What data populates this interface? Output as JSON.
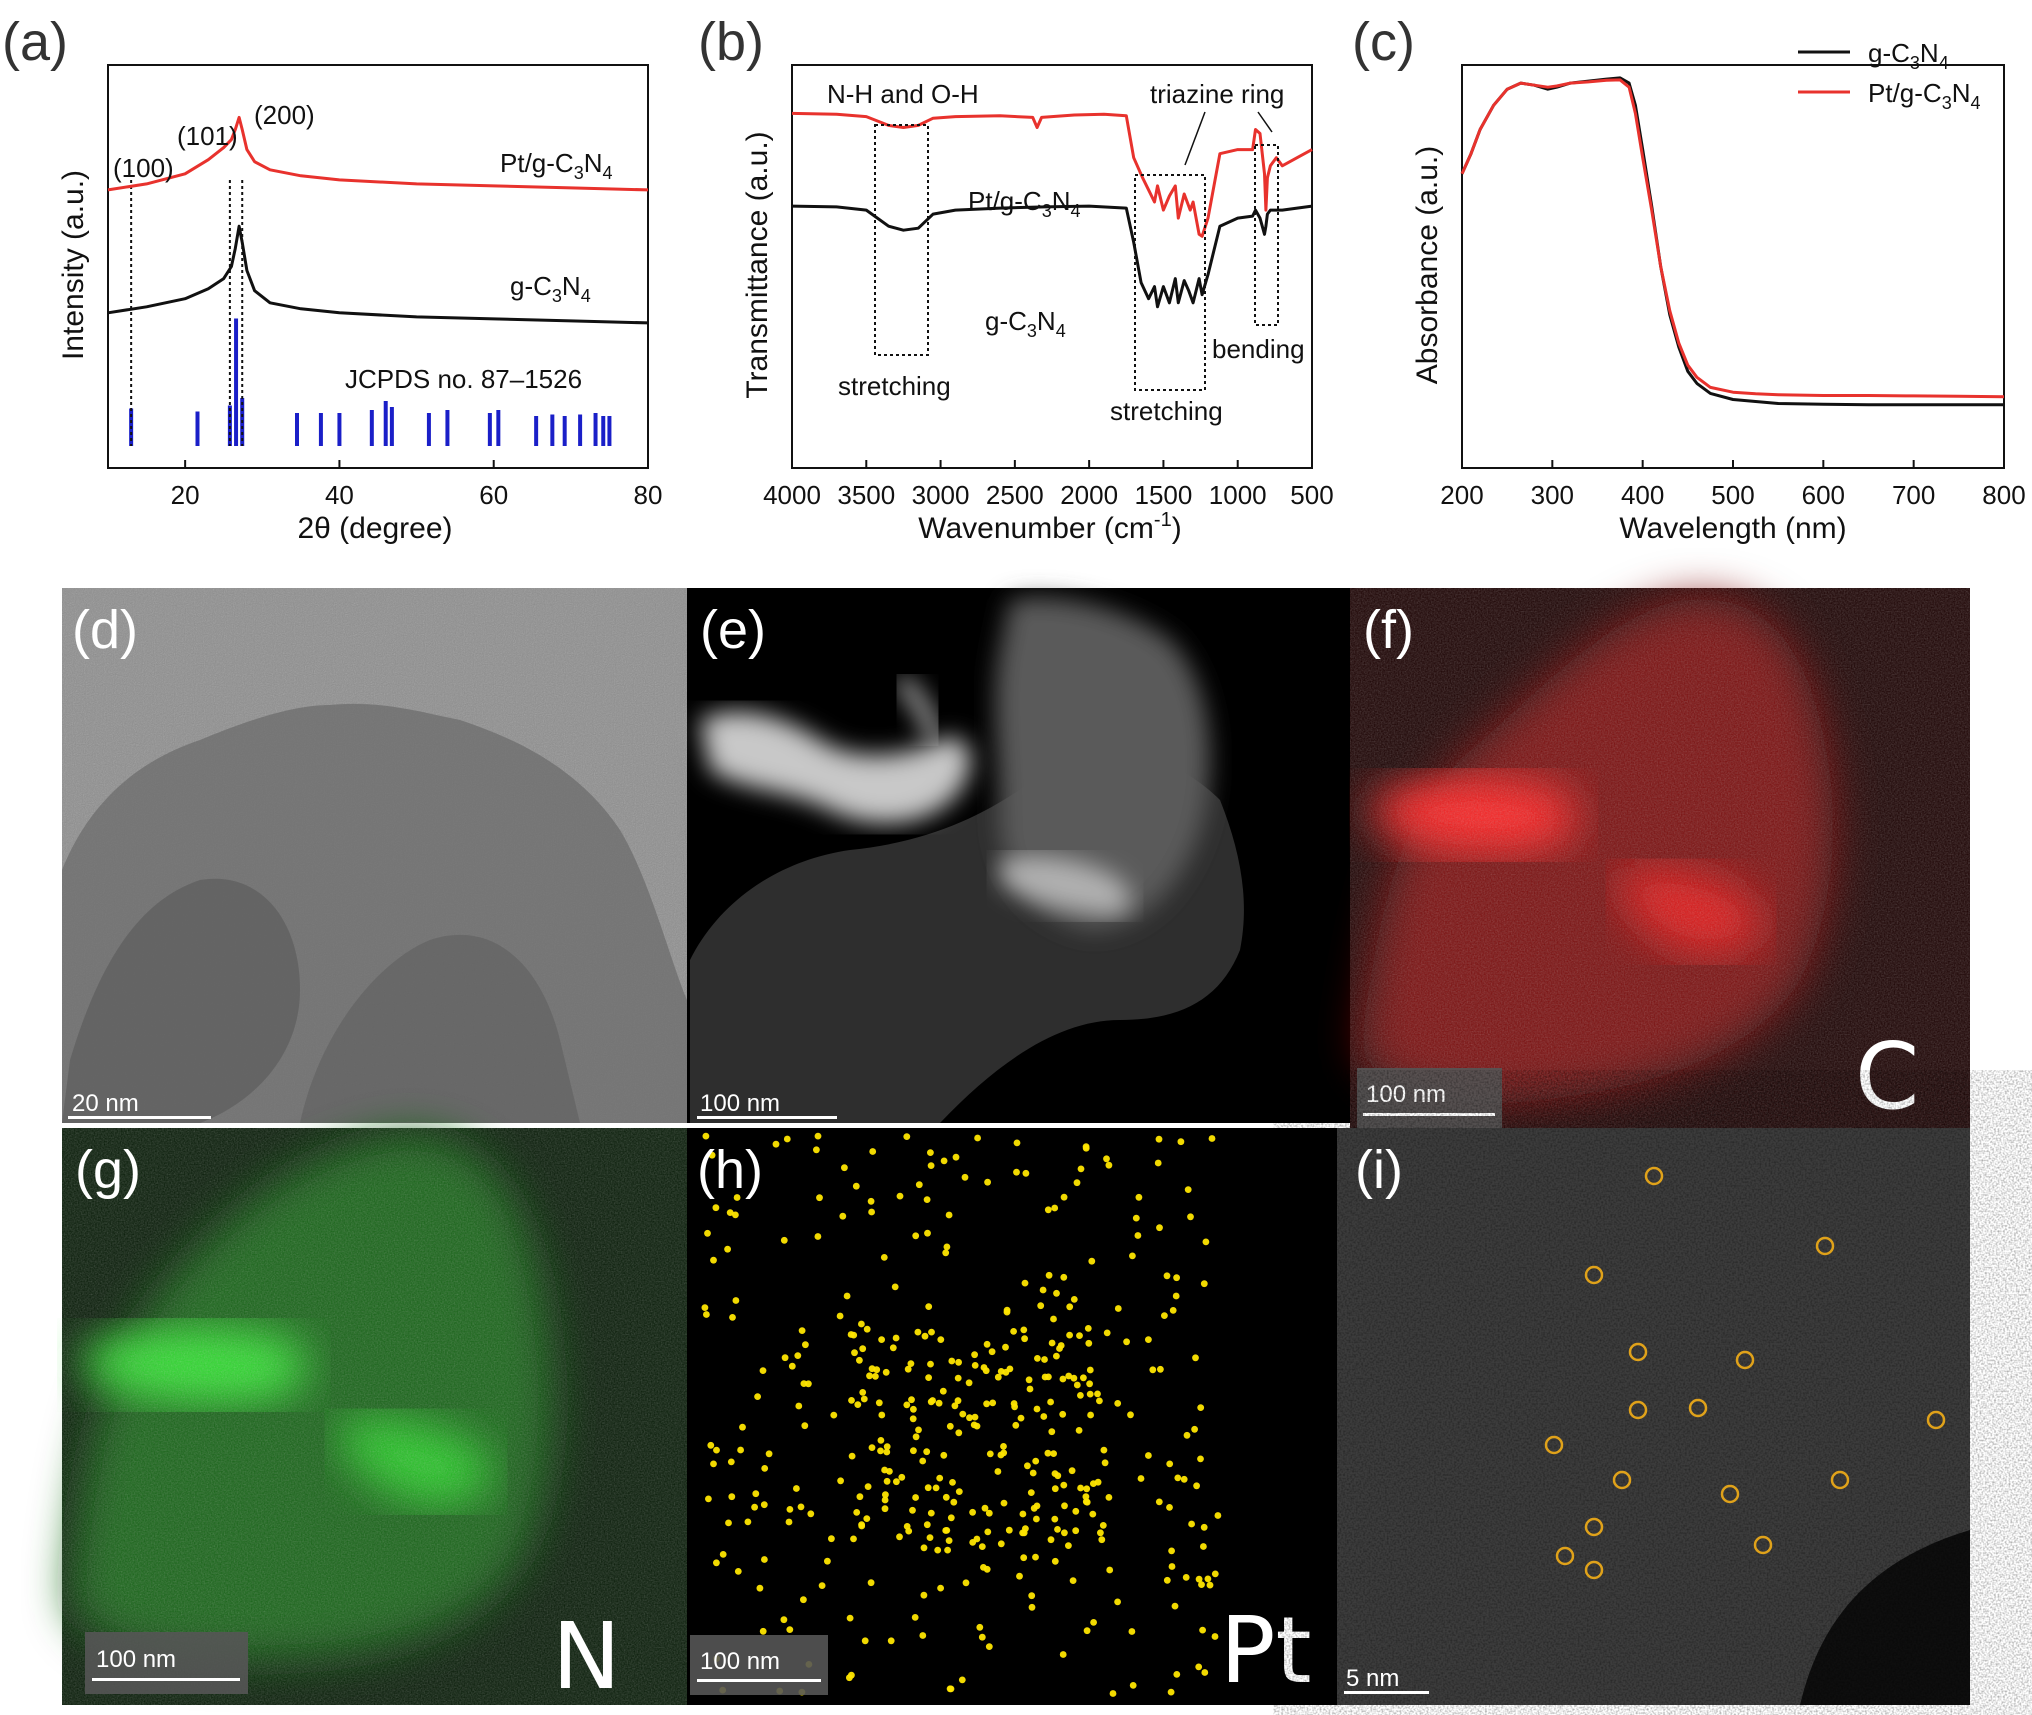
{
  "panel_labels": {
    "a": "(a)",
    "b": "(b)",
    "c": "(c)",
    "d": "(d)",
    "e": "(e)",
    "f": "(f)",
    "g": "(g)",
    "h": "(h)",
    "i": "(i)"
  },
  "chart_data": [
    {
      "type": "line",
      "panel": "a",
      "xlabel": "2θ (degree)",
      "ylabel": "Intensity (a.u.)",
      "xlim": [
        10,
        80
      ],
      "xticks": [
        20,
        40,
        60,
        80
      ],
      "series": [
        {
          "name": "Pt/g-C3N4",
          "color": "#e8322d",
          "x": [
            10,
            15,
            20,
            23,
            25,
            26,
            26.5,
            27,
            27.4,
            28,
            29,
            31,
            35,
            40,
            50,
            60,
            70,
            80
          ],
          "y": [
            0.69,
            0.705,
            0.73,
            0.765,
            0.795,
            0.815,
            0.84,
            0.87,
            0.84,
            0.79,
            0.76,
            0.74,
            0.725,
            0.715,
            0.705,
            0.7,
            0.695,
            0.69
          ]
        },
        {
          "name": "g-C3N4",
          "color": "#111111",
          "x": [
            10,
            15,
            20,
            23,
            25,
            26,
            26.5,
            27,
            27.4,
            28,
            29,
            31,
            35,
            40,
            50,
            60,
            70,
            80
          ],
          "y": [
            0.385,
            0.4,
            0.42,
            0.445,
            0.47,
            0.5,
            0.545,
            0.6,
            0.56,
            0.49,
            0.44,
            0.41,
            0.395,
            0.385,
            0.375,
            0.37,
            0.365,
            0.36
          ]
        }
      ],
      "reference": {
        "label": "JCPDS no. 87–1526",
        "color": "#1a1fc8",
        "positions": [
          13.0,
          21.6,
          25.8,
          26.6,
          27.4,
          34.5,
          37.6,
          40.0,
          44.2,
          46.0,
          46.8,
          51.6,
          54.0,
          59.5,
          60.6,
          65.5,
          67.6,
          69.2,
          71.2,
          73.2,
          74.2,
          75.0
        ],
        "heights": [
          0.25,
          0.23,
          0.27,
          0.85,
          0.32,
          0.22,
          0.22,
          0.22,
          0.24,
          0.3,
          0.26,
          0.22,
          0.24,
          0.22,
          0.24,
          0.2,
          0.21,
          0.2,
          0.21,
          0.22,
          0.2,
          0.2
        ]
      },
      "peak_labels": [
        {
          "text": "(100)",
          "x": 13.0
        },
        {
          "text": "(101)",
          "x": 25.8
        },
        {
          "text": "(200)",
          "x": 27.4
        }
      ],
      "annotations": [
        "Pt/g-C3N4",
        "g-C3N4",
        "JCPDS no. 87–1526"
      ]
    },
    {
      "type": "line",
      "panel": "b",
      "xlabel": "Wavenumber (cm-1)",
      "ylabel": "Transmittance (a.u.)",
      "xlim": [
        4000,
        500
      ],
      "xticks": [
        4000,
        3500,
        3000,
        2500,
        2000,
        1500,
        1000,
        500
      ],
      "series": [
        {
          "name": "Pt/g-C3N4",
          "color": "#e8322d",
          "x": [
            4000,
            3700,
            3500,
            3350,
            3250,
            3150,
            3050,
            2900,
            2600,
            2380,
            2350,
            2320,
            2100,
            1900,
            1750,
            1700,
            1640,
            1600,
            1560,
            1540,
            1500,
            1460,
            1420,
            1400,
            1360,
            1320,
            1300,
            1260,
            1240,
            1200,
            1120,
            1000,
            900,
            880,
            850,
            820,
            810,
            800,
            780,
            740,
            700,
            600,
            500
          ],
          "y": [
            0.88,
            0.878,
            0.872,
            0.85,
            0.845,
            0.85,
            0.868,
            0.872,
            0.874,
            0.87,
            0.845,
            0.87,
            0.876,
            0.878,
            0.874,
            0.77,
            0.72,
            0.69,
            0.66,
            0.7,
            0.64,
            0.675,
            0.7,
            0.62,
            0.68,
            0.64,
            0.66,
            0.58,
            0.575,
            0.62,
            0.78,
            0.79,
            0.79,
            0.84,
            0.83,
            0.73,
            0.64,
            0.72,
            0.75,
            0.77,
            0.75,
            0.77,
            0.79
          ]
        },
        {
          "name": "g-C3N4",
          "color": "#111111",
          "x": [
            4000,
            3700,
            3500,
            3350,
            3250,
            3150,
            3050,
            2900,
            2600,
            2300,
            2000,
            1750,
            1700,
            1650,
            1600,
            1560,
            1540,
            1500,
            1460,
            1420,
            1400,
            1360,
            1330,
            1300,
            1260,
            1240,
            1200,
            1120,
            1000,
            900,
            880,
            850,
            820,
            810,
            800,
            780,
            740,
            700,
            600,
            500
          ],
          "y": [
            0.65,
            0.648,
            0.64,
            0.6,
            0.59,
            0.595,
            0.63,
            0.64,
            0.645,
            0.648,
            0.65,
            0.645,
            0.56,
            0.46,
            0.42,
            0.45,
            0.4,
            0.45,
            0.41,
            0.47,
            0.41,
            0.465,
            0.44,
            0.41,
            0.47,
            0.43,
            0.48,
            0.6,
            0.62,
            0.625,
            0.64,
            0.62,
            0.58,
            0.6,
            0.63,
            0.64,
            0.64,
            0.64,
            0.645,
            0.65
          ]
        }
      ],
      "annotations": [
        "N-H and O-H",
        "triazine ring",
        "Pt/g-C3N4",
        "g-C3N4",
        "stretching",
        "stretching",
        "bending"
      ]
    },
    {
      "type": "line",
      "panel": "c",
      "xlabel": "Wavelength (nm)",
      "ylabel": "Absorbance (a.u.)",
      "xlim": [
        200,
        800
      ],
      "xticks": [
        200,
        300,
        400,
        500,
        600,
        700,
        800
      ],
      "legend": "top-right",
      "series": [
        {
          "name": "g-C3N4",
          "color": "#111111",
          "x": [
            200,
            210,
            220,
            235,
            250,
            265,
            280,
            295,
            305,
            320,
            340,
            360,
            375,
            385,
            392,
            400,
            410,
            420,
            430,
            440,
            450,
            460,
            475,
            500,
            525,
            550,
            600,
            650,
            700,
            750,
            800
          ],
          "y": [
            0.73,
            0.78,
            0.84,
            0.9,
            0.94,
            0.955,
            0.95,
            0.94,
            0.945,
            0.955,
            0.96,
            0.965,
            0.968,
            0.955,
            0.9,
            0.79,
            0.65,
            0.5,
            0.38,
            0.3,
            0.24,
            0.21,
            0.185,
            0.17,
            0.165,
            0.16,
            0.158,
            0.157,
            0.157,
            0.157,
            0.157
          ]
        },
        {
          "name": "Pt/g-C3N4",
          "color": "#e8322d",
          "x": [
            200,
            210,
            220,
            235,
            250,
            265,
            280,
            295,
            305,
            320,
            340,
            360,
            375,
            385,
            392,
            400,
            410,
            420,
            430,
            440,
            450,
            460,
            475,
            500,
            525,
            550,
            600,
            650,
            700,
            750,
            800
          ],
          "y": [
            0.73,
            0.78,
            0.84,
            0.9,
            0.94,
            0.955,
            0.95,
            0.945,
            0.948,
            0.955,
            0.958,
            0.962,
            0.963,
            0.945,
            0.88,
            0.77,
            0.64,
            0.5,
            0.39,
            0.31,
            0.255,
            0.225,
            0.2,
            0.188,
            0.184,
            0.182,
            0.18,
            0.18,
            0.179,
            0.178,
            0.177
          ]
        }
      ]
    }
  ],
  "images": {
    "d": {
      "scalebar": "20 nm"
    },
    "e": {
      "scalebar": "100 nm"
    },
    "f": {
      "scalebar": "100 nm",
      "element": "C"
    },
    "g": {
      "scalebar": "100 nm",
      "element": "N"
    },
    "h": {
      "scalebar": "100 nm",
      "element": "Pt"
    },
    "i": {
      "scalebar": "5 nm"
    }
  },
  "colors": {
    "red": "#e8322d",
    "black": "#111111",
    "blue": "#1a1fc8",
    "map_red": "#ff1a1a",
    "map_green": "#22d022",
    "pt_yellow": "#ffe600",
    "circle_orange": "#e0a21a"
  }
}
